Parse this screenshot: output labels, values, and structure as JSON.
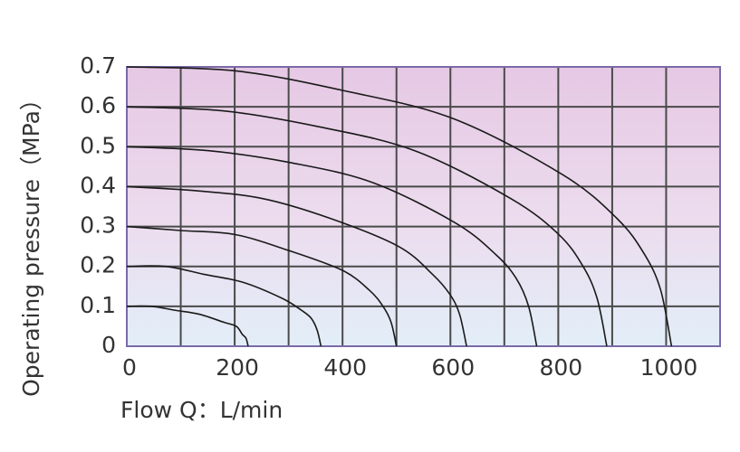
{
  "chart_data": {
    "type": "line",
    "xlabel": "Flow  Q：L/min",
    "ylabel": "Operating pressure（MPa）",
    "xlim": [
      0,
      1100
    ],
    "xticks": [
      0,
      200,
      400,
      600,
      800,
      1000
    ],
    "xminorticks": [
      100,
      300,
      500,
      700,
      900
    ],
    "ylim": [
      0,
      0.7
    ],
    "yticks": [
      0,
      0.1,
      0.2,
      0.3,
      0.4,
      0.5,
      0.6,
      0.7
    ],
    "grid": true,
    "series": [
      {
        "color": "#1a1a1a",
        "x": [
          0,
          45,
          90,
          135,
          180,
          203,
          214,
          221,
          225
        ],
        "values": [
          0.1,
          0.1,
          0.09,
          0.08,
          0.06,
          0.05,
          0.03,
          0.02,
          0
        ]
      },
      {
        "color": "#1a1a1a",
        "x": [
          0,
          72,
          144,
          216,
          288,
          324,
          342,
          353,
          360
        ],
        "values": [
          0.2,
          0.2,
          0.18,
          0.16,
          0.12,
          0.09,
          0.07,
          0.04,
          0
        ]
      },
      {
        "color": "#1a1a1a",
        "x": [
          0,
          100,
          200,
          300,
          400,
          450,
          475,
          490,
          500
        ],
        "values": [
          0.3,
          0.29,
          0.28,
          0.24,
          0.19,
          0.14,
          0.1,
          0.06,
          0
        ]
      },
      {
        "color": "#1a1a1a",
        "x": [
          0,
          126,
          252,
          378,
          504,
          567,
          599,
          617,
          630
        ],
        "values": [
          0.4,
          0.39,
          0.37,
          0.32,
          0.25,
          0.18,
          0.13,
          0.08,
          0
        ]
      },
      {
        "color": "#1a1a1a",
        "x": [
          0,
          152,
          304,
          456,
          608,
          684,
          722,
          745,
          760
        ],
        "values": [
          0.5,
          0.49,
          0.46,
          0.41,
          0.31,
          0.23,
          0.17,
          0.1,
          0
        ]
      },
      {
        "color": "#1a1a1a",
        "x": [
          0,
          178,
          356,
          534,
          712,
          801,
          846,
          872,
          890
        ],
        "values": [
          0.6,
          0.59,
          0.55,
          0.49,
          0.37,
          0.28,
          0.2,
          0.12,
          0
        ]
      },
      {
        "color": "#1a1a1a",
        "x": [
          0,
          202,
          404,
          606,
          808,
          909,
          960,
          990,
          1010
        ],
        "values": [
          0.7,
          0.69,
          0.64,
          0.57,
          0.43,
          0.32,
          0.23,
          0.14,
          0
        ]
      }
    ]
  }
}
